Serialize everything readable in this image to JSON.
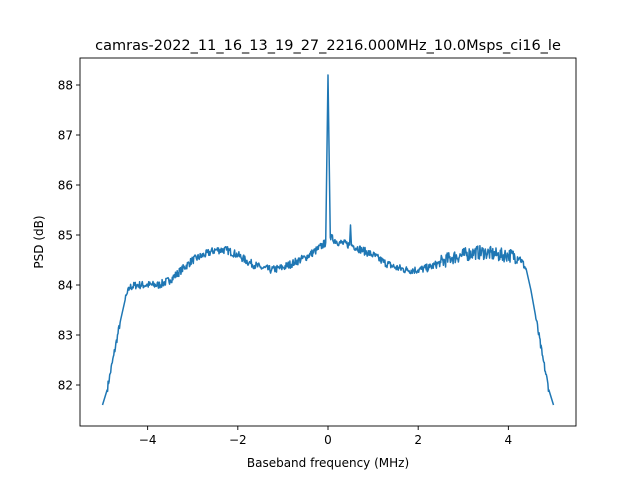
{
  "chart_data": {
    "type": "line",
    "title": "camras-2022_11_16_13_19_27_2216.000MHz_10.0Msps_ci16_le",
    "xlabel": "Baseband frequency (MHz)",
    "ylabel": "PSD (dB)",
    "xlim": [
      -5.5,
      5.5
    ],
    "ylim": [
      81.18,
      88.54
    ],
    "xticks": [
      -4,
      -2,
      0,
      2,
      4
    ],
    "xtick_labels": [
      "−4",
      "−2",
      "0",
      "2",
      "4"
    ],
    "yticks": [
      82,
      83,
      84,
      85,
      86,
      87,
      88
    ],
    "ytick_labels": [
      "82",
      "83",
      "84",
      "85",
      "86",
      "87",
      "88"
    ],
    "grid": false,
    "color": "#1f77b4",
    "series": [
      {
        "name": "PSD",
        "x": [
          -5.0,
          -4.9,
          -4.75,
          -4.6,
          -4.5,
          -4.4,
          -4.25,
          -4.0,
          -3.75,
          -3.5,
          -3.25,
          -3.0,
          -2.75,
          -2.5,
          -2.25,
          -2.0,
          -1.75,
          -1.5,
          -1.25,
          -1.0,
          -0.75,
          -0.5,
          -0.25,
          -0.05,
          0.0,
          0.05,
          0.25,
          0.48,
          0.5,
          0.52,
          0.75,
          1.0,
          1.25,
          1.5,
          1.75,
          2.0,
          2.25,
          2.5,
          2.75,
          3.0,
          3.25,
          3.5,
          3.75,
          4.0,
          4.25,
          4.4,
          4.5,
          4.6,
          4.75,
          4.9,
          5.0
        ],
        "y": [
          81.6,
          81.9,
          82.6,
          83.3,
          83.7,
          83.95,
          84.0,
          84.0,
          84.0,
          84.1,
          84.3,
          84.5,
          84.6,
          84.7,
          84.7,
          84.6,
          84.45,
          84.35,
          84.3,
          84.35,
          84.45,
          84.55,
          84.7,
          84.85,
          88.2,
          84.95,
          84.85,
          84.8,
          85.2,
          84.8,
          84.7,
          84.6,
          84.45,
          84.35,
          84.3,
          84.3,
          84.35,
          84.45,
          84.55,
          84.6,
          84.65,
          84.65,
          84.6,
          84.6,
          84.55,
          84.3,
          83.9,
          83.4,
          82.6,
          81.9,
          81.6
        ]
      }
    ]
  }
}
